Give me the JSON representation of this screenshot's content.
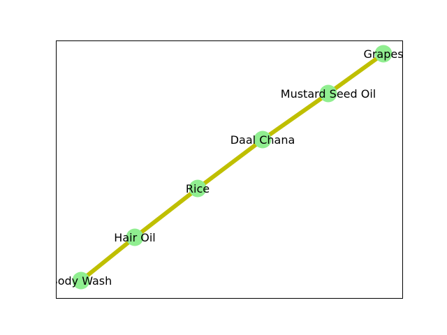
{
  "graph": {
    "nodes": [
      {
        "id": "body_wash",
        "label": "Body Wash"
      },
      {
        "id": "hair_oil",
        "label": "Hair Oil"
      },
      {
        "id": "rice",
        "label": "Rice"
      },
      {
        "id": "daal_chana",
        "label": "Daal Chana"
      },
      {
        "id": "mustard_seed_oil",
        "label": "Mustard Seed Oil"
      },
      {
        "id": "grapes",
        "label": "Grapes"
      }
    ],
    "edges": [
      {
        "source": "body_wash",
        "target": "hair_oil"
      },
      {
        "source": "hair_oil",
        "target": "rice"
      },
      {
        "source": "rice",
        "target": "daal_chana"
      },
      {
        "source": "daal_chana",
        "target": "mustard_seed_oil"
      },
      {
        "source": "mustard_seed_oil",
        "target": "grapes"
      }
    ],
    "style": {
      "node_color": "#90ee90",
      "edge_color": "#bfbf00",
      "frame_color": "#000000",
      "background": "#ffffff"
    }
  }
}
